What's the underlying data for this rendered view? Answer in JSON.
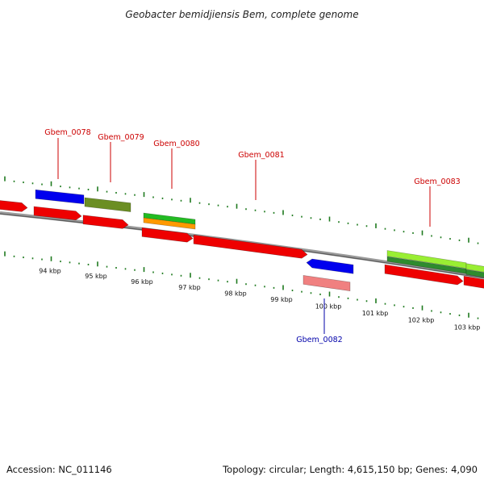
{
  "title": "Geobacter bemidjiensis Bem, complete genome",
  "footer": {
    "accession": "Accession: NC_011146",
    "topology": "Topology: circular; Length: 4,615,150 bp; Genes: 4,090"
  },
  "colors": {
    "backbone": "#808080",
    "tick": "#1e7a1e",
    "label_forward": "#cc0000",
    "label_reverse": "#0000aa",
    "cds_red": "#ee0000",
    "gene_blue": "#0000ee",
    "gene_olive": "#6b8e23",
    "gene_green": "#22bb22",
    "gene_orange": "#ff9900",
    "gene_lightgreen": "#99ee33",
    "gene_darkgreen": "#2e8b2e",
    "gene_pink": "#f08080"
  },
  "kbp_labels": [
    "94 kbp",
    "95 kbp",
    "96 kbp",
    "97 kbp",
    "98 kbp",
    "99 kbp",
    "100 kbp",
    "101 kbp",
    "102 kbp",
    "103 kbp"
  ],
  "gene_labels": [
    {
      "text": "Gbem_0078",
      "strand": "forward"
    },
    {
      "text": "Gbem_0079",
      "strand": "forward"
    },
    {
      "text": "Gbem_0080",
      "strand": "forward"
    },
    {
      "text": "Gbem_0081",
      "strand": "forward"
    },
    {
      "text": "Gbem_0082",
      "strand": "reverse"
    },
    {
      "text": "Gbem_0083",
      "strand": "forward"
    }
  ]
}
